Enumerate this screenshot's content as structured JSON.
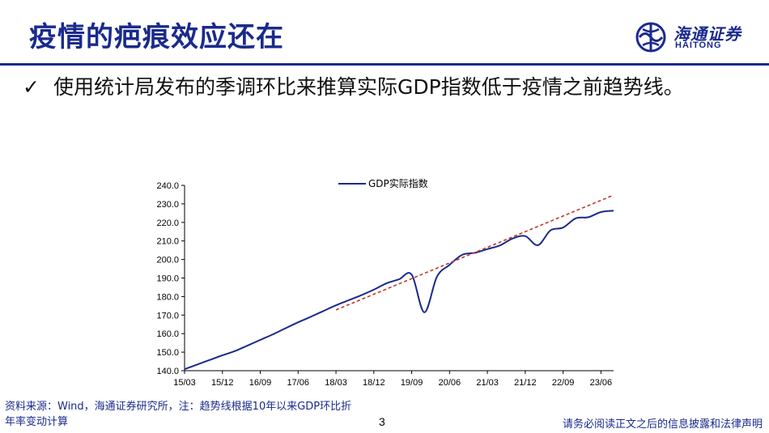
{
  "header": {
    "title": "疫情的疤痕效应还在",
    "logo_cn": "海通证券",
    "logo_en": "HAITONG",
    "accent_color": "#1a2a8c"
  },
  "bullet": {
    "icon": "check-icon",
    "text": "使用统计局发布的季调环比来推算实际GDP指数低于疫情之前趋势线。"
  },
  "chart_data": {
    "type": "line",
    "title": "",
    "xlabel": "",
    "ylabel": "",
    "ylim": [
      140,
      240
    ],
    "y_ticks": [
      "140.0",
      "150.0",
      "160.0",
      "170.0",
      "180.0",
      "190.0",
      "200.0",
      "210.0",
      "220.0",
      "230.0",
      "240.0"
    ],
    "x_tick_labels": [
      "15/03",
      "15/12",
      "16/09",
      "17/06",
      "18/03",
      "18/12",
      "19/09",
      "20/06",
      "21/03",
      "21/12",
      "22/09",
      "23/06"
    ],
    "legend": {
      "placement": "top-center",
      "entries": [
        "GDP实际指数"
      ]
    },
    "grid": false,
    "series": [
      {
        "name": "GDP实际指数",
        "color": "#1a2a8c",
        "style": "solid",
        "x": [
          "15/03",
          "15/06",
          "15/09",
          "15/12",
          "16/03",
          "16/06",
          "16/09",
          "16/12",
          "17/03",
          "17/06",
          "17/09",
          "17/12",
          "18/03",
          "18/06",
          "18/09",
          "18/12",
          "19/03",
          "19/06",
          "19/09",
          "19/12",
          "20/03",
          "20/06",
          "20/09",
          "20/12",
          "21/03",
          "21/06",
          "21/09",
          "21/12",
          "22/03",
          "22/06",
          "22/09",
          "22/12",
          "23/03",
          "23/06",
          "23/09"
        ],
        "values": [
          140.8,
          143.3,
          145.8,
          148.3,
          150.6,
          153.6,
          156.6,
          159.6,
          162.9,
          166.1,
          169.1,
          172.2,
          175.3,
          178.0,
          180.7,
          183.7,
          187.1,
          189.3,
          191.8,
          171.5,
          190.7,
          197.1,
          202.5,
          203.6,
          205.6,
          207.6,
          211.3,
          212.6,
          207.7,
          215.7,
          217.2,
          222.2,
          222.8,
          225.6,
          226.3
        ]
      },
      {
        "name": "",
        "color": "#c0392b",
        "style": "dashed",
        "x": [
          "18/03",
          "23/09"
        ],
        "values": [
          172.8,
          234.7
        ]
      }
    ]
  },
  "footer": {
    "source": "资料来源：Wind，海通证券研究所，注：趋势线根据10年以来GDP环比折年率变动计算",
    "page": "3",
    "disclaimer": "请务必阅读正文之后的信息披露和法律声明"
  }
}
